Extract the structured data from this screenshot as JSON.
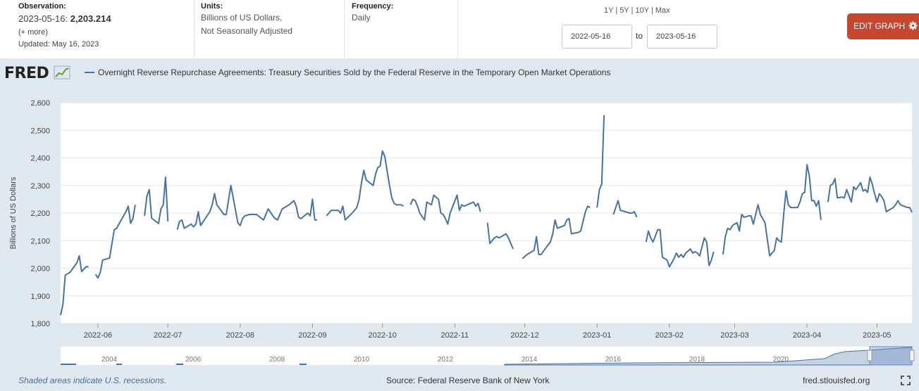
{
  "header": {
    "observation_label": "Observation:",
    "observation_date": "2023-05-16:",
    "observation_value": "2,203.214",
    "more_link": "(+ more)",
    "updated": "Updated: May 16, 2023",
    "units_label": "Units:",
    "units_line1": "Billions of US Dollars,",
    "units_line2": "Not Seasonally Adjusted",
    "frequency_label": "Frequency:",
    "frequency_value": "Daily",
    "range_1y": "1Y",
    "range_5y": "5Y",
    "range_10y": "10Y",
    "range_max": "Max",
    "range_sep": "|",
    "start_date": "2022-05-16",
    "to_label": "to",
    "end_date": "2023-05-16",
    "edit_button": "EDIT GRAPH"
  },
  "logo": {
    "text": "FRED"
  },
  "footer": {
    "recession_note": "Shaded areas indicate U.S. recessions.",
    "source": "Source: Federal Reserve Bank of New York",
    "url": "fred.stlouisfed.org"
  },
  "colors": {
    "line": "#4572a7",
    "accent": "#c7472e",
    "background": "#e1e9f0"
  },
  "chart_data": {
    "type": "line",
    "title": "Overnight Reverse Repurchase Agreements: Treasury Securities Sold by the Federal Reserve in the Temporary Open Market Operations",
    "xlabel": "",
    "ylabel": "Billions of US Dollars",
    "ylim": [
      1800,
      2600
    ],
    "xlim": [
      0,
      365
    ],
    "yticks": [
      1800,
      1900,
      2000,
      2100,
      2200,
      2300,
      2400,
      2500,
      2600
    ],
    "ytick_labels": [
      "1,800",
      "1,900",
      "2,000",
      "2,100",
      "2,200",
      "2,300",
      "2,400",
      "2,500",
      "2,600"
    ],
    "xticks": [
      16,
      46,
      77,
      108,
      138,
      169,
      199,
      230,
      261,
      289,
      320,
      350
    ],
    "xtick_labels": [
      "2022-06",
      "2022-07",
      "2022-08",
      "2022-09",
      "2022-10",
      "2022-11",
      "2022-12",
      "2023-01",
      "2023-02",
      "2023-03",
      "2023-04",
      "2023-05"
    ],
    "grid": true,
    "navigator_labels": [
      "2004",
      "2006",
      "2008",
      "2010",
      "2012",
      "2014",
      "2016",
      "2018",
      "2020"
    ],
    "series": [
      {
        "name": "Overnight Reverse Repurchase Agreements",
        "segments": [
          [
            [
              0,
              1830
            ],
            [
              1,
              1870
            ],
            [
              2,
              1975
            ],
            [
              4,
              1985
            ],
            [
              7,
              2020
            ],
            [
              8,
              2045
            ],
            [
              9,
              1988
            ],
            [
              11,
              2006
            ],
            [
              12,
              2005
            ]
          ],
          [
            [
              15,
              1978
            ],
            [
              16,
              1965
            ],
            [
              17,
              1985
            ],
            [
              18,
              2030
            ],
            [
              21,
              2037
            ],
            [
              23,
              2140
            ],
            [
              24,
              2145
            ],
            [
              28,
              2205
            ],
            [
              29,
              2225
            ],
            [
              30,
              2163
            ],
            [
              31,
              2180
            ],
            [
              32,
              2230
            ]
          ],
          [
            [
              36,
              2190
            ],
            [
              37,
              2262
            ],
            [
              38,
              2285
            ],
            [
              39,
              2182
            ],
            [
              42,
              2162
            ],
            [
              43,
              2215
            ],
            [
              44,
              2229
            ],
            [
              45,
              2330
            ],
            [
              46,
              2170
            ]
          ],
          [
            [
              50,
              2140
            ],
            [
              51,
              2170
            ],
            [
              52,
              2175
            ],
            [
              53,
              2145
            ],
            [
              56,
              2160
            ],
            [
              57,
              2150
            ],
            [
              58,
              2160
            ],
            [
              59,
              2205
            ],
            [
              60,
              2155
            ],
            [
              64,
              2205
            ],
            [
              65,
              2230
            ],
            [
              66,
              2270
            ],
            [
              67,
              2230
            ],
            [
              70,
              2195
            ],
            [
              71,
              2195
            ],
            [
              73,
              2300
            ],
            [
              74,
              2255
            ],
            [
              76,
              2165
            ],
            [
              77,
              2155
            ],
            [
              78,
              2180
            ],
            [
              79,
              2190
            ],
            [
              81,
              2195
            ],
            [
              84,
              2195
            ],
            [
              87,
              2175
            ],
            [
              88,
              2195
            ],
            [
              89,
              2215
            ],
            [
              91,
              2190
            ],
            [
              92,
              2180
            ],
            [
              93,
              2175
            ],
            [
              95,
              2215
            ],
            [
              98,
              2230
            ],
            [
              100,
              2245
            ],
            [
              101,
              2225
            ],
            [
              102,
              2185
            ],
            [
              103,
              2180
            ],
            [
              106,
              2200
            ],
            [
              107,
              2190
            ],
            [
              108,
              2250
            ],
            [
              109,
              2175
            ],
            [
              110,
              2175
            ]
          ],
          [
            [
              114,
              2190
            ],
            [
              116,
              2210
            ],
            [
              119,
              2210
            ],
            [
              120,
              2200
            ],
            [
              121,
              2225
            ],
            [
              122,
              2175
            ],
            [
              125,
              2200
            ],
            [
              127,
              2220
            ],
            [
              128,
              2250
            ],
            [
              129,
              2310
            ],
            [
              130,
              2355
            ],
            [
              131,
              2320
            ],
            [
              134,
              2300
            ],
            [
              135,
              2340
            ],
            [
              136,
              2365
            ],
            [
              137,
              2370
            ],
            [
              138,
              2425
            ],
            [
              139,
              2405
            ],
            [
              141,
              2300
            ],
            [
              142,
              2255
            ],
            [
              143,
              2235
            ],
            [
              144,
              2230
            ],
            [
              146,
              2230
            ],
            [
              147,
              2225
            ]
          ],
          [
            [
              150,
              2230
            ],
            [
              151,
              2250
            ],
            [
              152,
              2245
            ],
            [
              153,
              2225
            ],
            [
              154,
              2200
            ],
            [
              156,
              2175
            ],
            [
              157,
              2240
            ],
            [
              159,
              2230
            ],
            [
              160,
              2265
            ],
            [
              162,
              2250
            ],
            [
              163,
              2200
            ],
            [
              164,
              2195
            ],
            [
              165,
              2180
            ],
            [
              166,
              2160
            ],
            [
              167,
              2200
            ],
            [
              170,
              2265
            ],
            [
              171,
              2210
            ],
            [
              172,
              2230
            ],
            [
              173,
              2225
            ],
            [
              177,
              2240
            ],
            [
              178,
              2225
            ],
            [
              179,
              2235
            ],
            [
              180,
              2205
            ]
          ],
          [
            [
              183,
              2165
            ],
            [
              184,
              2090
            ],
            [
              186,
              2110
            ],
            [
              187,
              2115
            ],
            [
              188,
              2110
            ],
            [
              190,
              2120
            ],
            [
              191,
              2125
            ],
            [
              192,
              2110
            ],
            [
              193,
              2090
            ],
            [
              194,
              2070
            ]
          ],
          [
            [
              198,
              2035
            ],
            [
              200,
              2050
            ],
            [
              203,
              2065
            ],
            [
              204,
              2115
            ],
            [
              205,
              2050
            ],
            [
              206,
              2050
            ],
            [
              209,
              2085
            ],
            [
              210,
              2095
            ],
            [
              211,
              2125
            ],
            [
              212,
              2175
            ],
            [
              213,
              2145
            ],
            [
              216,
              2155
            ],
            [
              217,
              2175
            ],
            [
              218,
              2180
            ],
            [
              219,
              2125
            ],
            [
              222,
              2130
            ],
            [
              223,
              2135
            ],
            [
              225,
              2205
            ],
            [
              226,
              2225
            ],
            [
              227,
              2220
            ]
          ],
          [
            [
              230,
              2220
            ],
            [
              231,
              2285
            ],
            [
              232,
              2305
            ],
            [
              233,
              2555
            ]
          ],
          [
            [
              237,
              2195
            ],
            [
              238,
              2220
            ],
            [
              239,
              2245
            ],
            [
              240,
              2210
            ],
            [
              244,
              2200
            ],
            [
              245,
              2200
            ],
            [
              246,
              2205
            ],
            [
              247,
              2185
            ]
          ],
          [
            [
              251,
              2095
            ],
            [
              252,
              2135
            ],
            [
              253,
              2110
            ],
            [
              254,
              2095
            ],
            [
              256,
              2140
            ],
            [
              257,
              2140
            ],
            [
              258,
              2040
            ],
            [
              260,
              2030
            ],
            [
              261,
              2005
            ],
            [
              263,
              2035
            ],
            [
              264,
              2055
            ],
            [
              265,
              2040
            ],
            [
              266,
              2050
            ],
            [
              267,
              2040
            ],
            [
              268,
              2055
            ],
            [
              270,
              2070
            ],
            [
              271,
              2055
            ],
            [
              272,
              2060
            ],
            [
              273,
              2055
            ],
            [
              274,
              2045
            ],
            [
              276,
              2110
            ],
            [
              277,
              2095
            ],
            [
              278,
              2010
            ],
            [
              279,
              2030
            ],
            [
              280,
              2060
            ]
          ],
          [
            [
              284,
              2050
            ],
            [
              285,
              2115
            ],
            [
              286,
              2145
            ],
            [
              287,
              2140
            ],
            [
              288,
              2155
            ],
            [
              290,
              2165
            ],
            [
              291,
              2135
            ],
            [
              292,
              2195
            ],
            [
              293,
              2185
            ],
            [
              295,
              2190
            ],
            [
              296,
              2190
            ],
            [
              297,
              2160
            ],
            [
              299,
              2230
            ],
            [
              300,
              2195
            ],
            [
              302,
              2165
            ],
            [
              303,
              2105
            ],
            [
              304,
              2045
            ],
            [
              306,
              2065
            ],
            [
              307,
              2110
            ],
            [
              308,
              2100
            ],
            [
              309,
              2095
            ],
            [
              310,
              2195
            ],
            [
              311,
              2280
            ],
            [
              312,
              2230
            ],
            [
              313,
              2220
            ],
            [
              314,
              2220
            ],
            [
              316,
              2220
            ],
            [
              317,
              2240
            ],
            [
              318,
              2270
            ],
            [
              319,
              2275
            ],
            [
              320,
              2375
            ],
            [
              321,
              2335
            ],
            [
              322,
              2245
            ],
            [
              323,
              2245
            ],
            [
              324,
              2225
            ],
            [
              325,
              2245
            ],
            [
              326,
              2175
            ]
          ],
          [
            [
              329,
              2240
            ],
            [
              330,
              2300
            ],
            [
              331,
              2305
            ],
            [
              332,
              2325
            ],
            [
              333,
              2255
            ],
            [
              335,
              2258
            ],
            [
              336,
              2255
            ],
            [
              337,
              2285
            ],
            [
              339,
              2240
            ],
            [
              340,
              2295
            ],
            [
              341,
              2285
            ],
            [
              343,
              2310
            ],
            [
              344,
              2280
            ],
            [
              345,
              2285
            ],
            [
              346,
              2275
            ],
            [
              347,
              2330
            ],
            [
              348,
              2305
            ],
            [
              349,
              2270
            ],
            [
              350,
              2240
            ],
            [
              351,
              2270
            ],
            [
              352,
              2260
            ],
            [
              353,
              2245
            ],
            [
              354,
              2205
            ],
            [
              357,
              2220
            ],
            [
              358,
              2230
            ],
            [
              359,
              2245
            ],
            [
              360,
              2230
            ],
            [
              363,
              2220
            ],
            [
              364,
              2220
            ],
            [
              365,
              2203
            ]
          ]
        ]
      }
    ]
  }
}
